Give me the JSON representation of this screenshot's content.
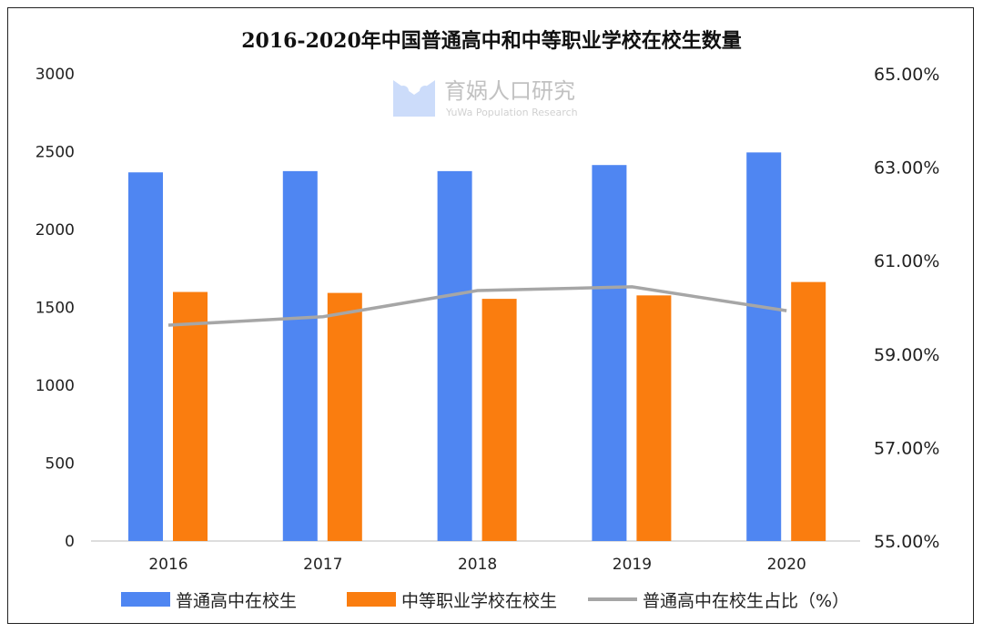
{
  "chart_data": {
    "type": "bar+line",
    "title": "2016-2020年中国普通高中和中等职业学校在校生数量",
    "categories": [
      "2016",
      "2017",
      "2018",
      "2019",
      "2020"
    ],
    "series": [
      {
        "name": "普通高中在校生",
        "type": "bar",
        "axis": "left",
        "color": "#4f86f2",
        "values": [
          2367,
          2375,
          2375,
          2414,
          2495
        ]
      },
      {
        "name": "中等职业学校在校生",
        "type": "bar",
        "axis": "left",
        "color": "#fa7d0f",
        "values": [
          1599,
          1593,
          1555,
          1577,
          1663
        ]
      },
      {
        "name": "普通高中在校生占比（%）",
        "type": "line",
        "axis": "right",
        "color": "#a6a6a6",
        "values": [
          59.62,
          59.8,
          60.36,
          60.44,
          59.93
        ]
      }
    ],
    "ylim_left": [
      0,
      3000
    ],
    "yticks_left": [
      "0",
      "500",
      "1000",
      "1500",
      "2000",
      "2500",
      "3000"
    ],
    "ylim_right": [
      55,
      65
    ],
    "yticks_right": [
      "55.00%",
      "57.00%",
      "59.00%",
      "61.00%",
      "63.00%",
      "65.00%"
    ],
    "grid": false,
    "legend_position": "bottom"
  },
  "watermark": {
    "name": "育娲人口研究",
    "sub": "YuWa Population Research"
  }
}
